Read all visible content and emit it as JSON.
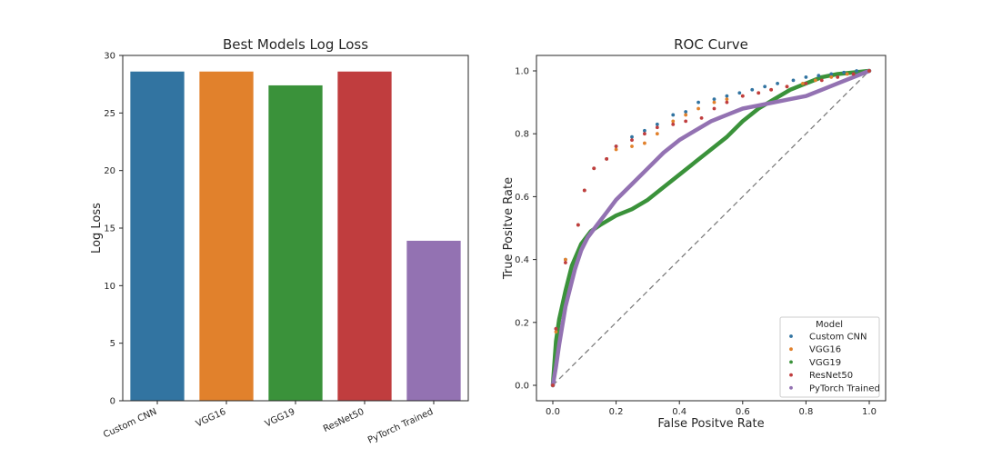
{
  "chart_data": [
    {
      "type": "bar",
      "title": "Best Models Log Loss",
      "xlabel": "",
      "ylabel": "Log Loss",
      "ylim": [
        0,
        30
      ],
      "yticks": [
        0,
        5,
        10,
        15,
        20,
        25,
        30
      ],
      "categories": [
        "Custom CNN",
        "VGG16",
        "VGG19",
        "ResNet50",
        "PyTorch Trained"
      ],
      "values": [
        28.6,
        28.6,
        27.4,
        28.6,
        13.9
      ],
      "colors": [
        "#3274a1",
        "#e1812c",
        "#3a923a",
        "#c03d3e",
        "#9372b2"
      ],
      "grid": false
    },
    {
      "type": "scatter",
      "title": "ROC Curve",
      "xlabel": "False Positve Rate",
      "ylabel": "True Positve Rate",
      "xlim": [
        0,
        1
      ],
      "ylim": [
        0,
        1
      ],
      "xticks": [
        0.0,
        0.2,
        0.4,
        0.6,
        0.8,
        1.0
      ],
      "yticks": [
        0.0,
        0.2,
        0.4,
        0.6,
        0.8,
        1.0
      ],
      "legend_title": "Model",
      "legend_position": "lower right",
      "diagonal_reference": true,
      "grid": false,
      "series": [
        {
          "name": "Custom CNN",
          "color": "#3274a1",
          "points": [
            [
              0.0,
              0.0
            ],
            [
              0.01,
              0.18
            ],
            [
              0.04,
              0.4
            ],
            [
              0.08,
              0.51
            ],
            [
              0.1,
              0.62
            ],
            [
              0.13,
              0.69
            ],
            [
              0.17,
              0.72
            ],
            [
              0.2,
              0.76
            ],
            [
              0.25,
              0.79
            ],
            [
              0.29,
              0.81
            ],
            [
              0.33,
              0.83
            ],
            [
              0.38,
              0.86
            ],
            [
              0.42,
              0.87
            ],
            [
              0.46,
              0.9
            ],
            [
              0.51,
              0.91
            ],
            [
              0.55,
              0.92
            ],
            [
              0.59,
              0.93
            ],
            [
              0.63,
              0.94
            ],
            [
              0.67,
              0.95
            ],
            [
              0.71,
              0.96
            ],
            [
              0.76,
              0.97
            ],
            [
              0.8,
              0.98
            ],
            [
              0.84,
              0.985
            ],
            [
              0.88,
              0.99
            ],
            [
              0.92,
              0.995
            ],
            [
              0.96,
              1.0
            ],
            [
              1.0,
              1.0
            ]
          ]
        },
        {
          "name": "VGG16",
          "color": "#e1812c",
          "points": [
            [
              0.0,
              0.0
            ],
            [
              0.01,
              0.17
            ],
            [
              0.04,
              0.4
            ],
            [
              0.08,
              0.51
            ],
            [
              0.1,
              0.62
            ],
            [
              0.13,
              0.69
            ],
            [
              0.17,
              0.72
            ],
            [
              0.2,
              0.75
            ],
            [
              0.25,
              0.76
            ],
            [
              0.29,
              0.77
            ],
            [
              0.33,
              0.8
            ],
            [
              0.38,
              0.84
            ],
            [
              0.42,
              0.86
            ],
            [
              0.46,
              0.88
            ],
            [
              0.51,
              0.9
            ],
            [
              0.55,
              0.91
            ],
            [
              0.6,
              0.92
            ],
            [
              0.65,
              0.93
            ],
            [
              0.69,
              0.94
            ],
            [
              0.74,
              0.95
            ],
            [
              0.79,
              0.96
            ],
            [
              0.83,
              0.97
            ],
            [
              0.88,
              0.98
            ],
            [
              0.93,
              0.99
            ],
            [
              1.0,
              1.0
            ]
          ]
        },
        {
          "name": "VGG19",
          "color": "#3a923a",
          "points": [
            [
              0.0,
              0.0
            ],
            [
              0.01,
              0.14
            ],
            [
              0.02,
              0.21
            ],
            [
              0.04,
              0.3
            ],
            [
              0.06,
              0.38
            ],
            [
              0.09,
              0.45
            ],
            [
              0.12,
              0.49
            ],
            [
              0.15,
              0.51
            ],
            [
              0.2,
              0.54
            ],
            [
              0.25,
              0.56
            ],
            [
              0.3,
              0.59
            ],
            [
              0.35,
              0.63
            ],
            [
              0.4,
              0.67
            ],
            [
              0.45,
              0.71
            ],
            [
              0.5,
              0.75
            ],
            [
              0.55,
              0.79
            ],
            [
              0.6,
              0.84
            ],
            [
              0.65,
              0.88
            ],
            [
              0.7,
              0.91
            ],
            [
              0.75,
              0.94
            ],
            [
              0.8,
              0.96
            ],
            [
              0.85,
              0.98
            ],
            [
              0.9,
              0.99
            ],
            [
              0.95,
              0.995
            ],
            [
              1.0,
              1.0
            ]
          ]
        },
        {
          "name": "ResNet50",
          "color": "#c03d3e",
          "points": [
            [
              0.0,
              0.0
            ],
            [
              0.01,
              0.18
            ],
            [
              0.04,
              0.39
            ],
            [
              0.08,
              0.51
            ],
            [
              0.1,
              0.62
            ],
            [
              0.13,
              0.69
            ],
            [
              0.17,
              0.72
            ],
            [
              0.2,
              0.76
            ],
            [
              0.25,
              0.78
            ],
            [
              0.29,
              0.8
            ],
            [
              0.33,
              0.82
            ],
            [
              0.38,
              0.83
            ],
            [
              0.42,
              0.84
            ],
            [
              0.47,
              0.85
            ],
            [
              0.51,
              0.88
            ],
            [
              0.55,
              0.9
            ],
            [
              0.6,
              0.92
            ],
            [
              0.65,
              0.93
            ],
            [
              0.69,
              0.94
            ],
            [
              0.74,
              0.95
            ],
            [
              0.8,
              0.96
            ],
            [
              0.85,
              0.97
            ],
            [
              0.9,
              0.98
            ],
            [
              0.95,
              0.99
            ],
            [
              1.0,
              1.0
            ]
          ]
        },
        {
          "name": "PyTorch Trained",
          "color": "#9372b2",
          "points": [
            [
              0.0,
              0.0
            ],
            [
              0.01,
              0.06
            ],
            [
              0.02,
              0.13
            ],
            [
              0.04,
              0.25
            ],
            [
              0.07,
              0.37
            ],
            [
              0.09,
              0.43
            ],
            [
              0.11,
              0.47
            ],
            [
              0.14,
              0.51
            ],
            [
              0.17,
              0.55
            ],
            [
              0.2,
              0.59
            ],
            [
              0.25,
              0.64
            ],
            [
              0.3,
              0.69
            ],
            [
              0.35,
              0.74
            ],
            [
              0.4,
              0.78
            ],
            [
              0.45,
              0.81
            ],
            [
              0.5,
              0.84
            ],
            [
              0.55,
              0.86
            ],
            [
              0.6,
              0.88
            ],
            [
              0.65,
              0.89
            ],
            [
              0.7,
              0.9
            ],
            [
              0.75,
              0.91
            ],
            [
              0.8,
              0.92
            ],
            [
              0.85,
              0.94
            ],
            [
              0.9,
              0.96
            ],
            [
              0.95,
              0.98
            ],
            [
              1.0,
              1.0
            ]
          ]
        }
      ]
    }
  ],
  "style": {
    "axis_color": "#262626",
    "reference_line_color": "#7f7f7f"
  }
}
